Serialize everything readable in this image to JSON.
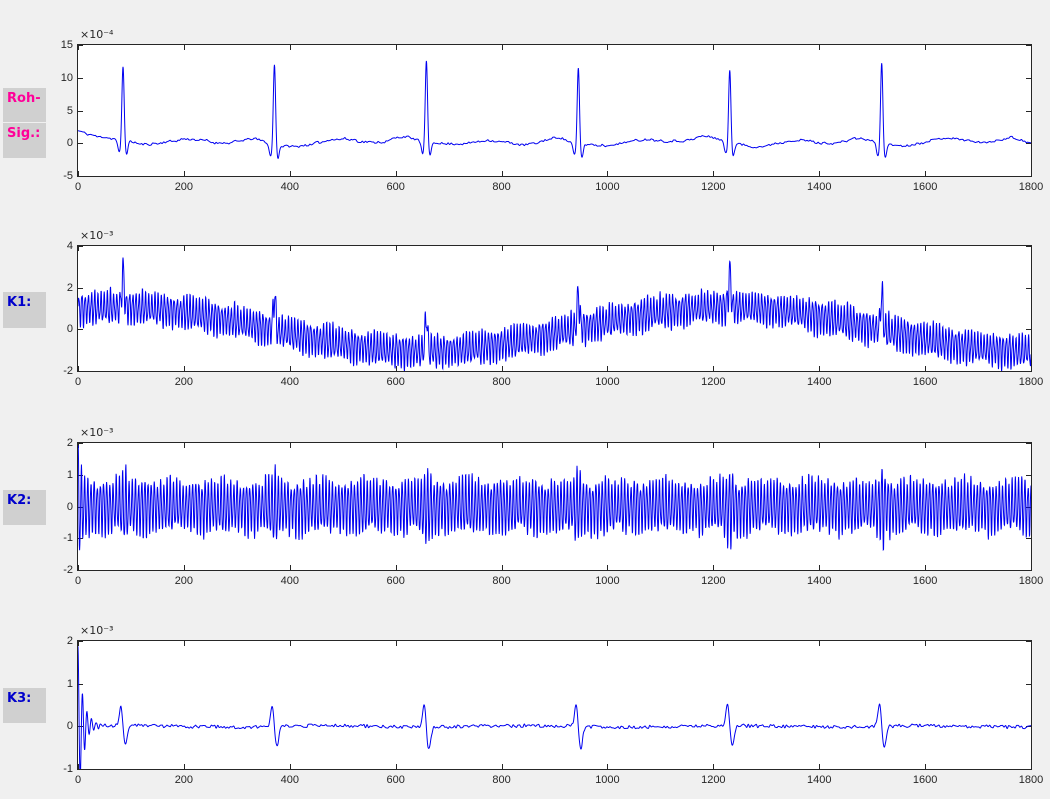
{
  "figure": {
    "bg_color": "#f0f0f0",
    "plot_bg_color": "#ffffff",
    "axis_color": "#262626",
    "trace_color": "#0000f0",
    "label_box_color": "#d0d0d0",
    "row_labels": [
      {
        "text": "Roh-",
        "color": "#ff0099"
      },
      {
        "text": "Sig.:",
        "color": "#ff0099"
      },
      {
        "text": "K1:",
        "color": "#0000cc"
      },
      {
        "text": "K2:",
        "color": "#0000cc"
      },
      {
        "text": "K3:",
        "color": "#0000cc"
      }
    ]
  },
  "chart_data": [
    {
      "type": "line",
      "row_label": "Roh-Sig.:",
      "title": "",
      "xlabel": "",
      "ylabel": "",
      "exponent_label": "×10⁻⁴",
      "xlim": [
        0,
        1800
      ],
      "ylim": [
        -5,
        15
      ],
      "x_ticks": [
        0,
        200,
        400,
        600,
        800,
        1000,
        1200,
        1400,
        1600,
        1800
      ],
      "y_ticks": [
        15,
        10,
        5,
        0,
        -5
      ],
      "grid": false,
      "legend": null,
      "signal": {
        "kind": "ecg",
        "description": "raw ECG signal with six QRS complexes and T-waves",
        "beat_positions": [
          85,
          371,
          658,
          945,
          1231,
          1518
        ],
        "r_peak_heights": [
          11.5,
          12.3,
          12.6,
          11.6,
          11.2,
          12.4
        ],
        "q_depth": -1.9,
        "s_depth": -2.0,
        "t_wave_height": 0.9,
        "start_value": 1.7,
        "noise_amplitude": 0.15
      }
    },
    {
      "type": "line",
      "row_label": "K1:",
      "title": "",
      "xlabel": "",
      "ylabel": "",
      "exponent_label": "×10⁻³",
      "xlim": [
        0,
        1800
      ],
      "ylim": [
        -2,
        4
      ],
      "x_ticks": [
        0,
        200,
        400,
        600,
        800,
        1000,
        1200,
        1400,
        1600,
        1800
      ],
      "y_ticks": [
        4,
        2,
        0,
        -2
      ],
      "grid": false,
      "legend": null,
      "signal": {
        "kind": "modulated_oscillation",
        "description": "high-frequency oscillation (±1) riding on slow sinusoidal drift, spikes at heartbeats",
        "osc_amplitude": 0.95,
        "osc_period": 6.0,
        "drift_amplitude": 1.05,
        "drift_period": 1150,
        "drift_peak_x": 1225,
        "beat_positions": [
          85,
          371,
          658,
          945,
          1231,
          1518
        ],
        "spike_height": 1.7
      }
    },
    {
      "type": "line",
      "row_label": "K2:",
      "title": "",
      "xlabel": "",
      "ylabel": "",
      "exponent_label": "×10⁻³",
      "xlim": [
        0,
        1800
      ],
      "ylim": [
        -2,
        2
      ],
      "x_ticks": [
        0,
        200,
        400,
        600,
        800,
        1000,
        1200,
        1400,
        1600,
        1800
      ],
      "y_ticks": [
        2,
        1,
        0,
        -1,
        -2
      ],
      "grid": false,
      "legend": null,
      "signal": {
        "kind": "oscillation",
        "description": "constant-amplitude (±0.9) high-frequency oscillation, amplitude bursts at heartbeats, initial transient to ~2",
        "osc_amplitude": 0.9,
        "osc_period": 6.0,
        "initial_transient": 1.1,
        "beat_positions": [
          85,
          371,
          658,
          945,
          1231,
          1518
        ],
        "spike_boost": 0.55
      }
    },
    {
      "type": "line",
      "row_label": "K3:",
      "title": "",
      "xlabel": "",
      "ylabel": "",
      "exponent_label": "×10⁻³",
      "xlim": [
        0,
        1800
      ],
      "ylim": [
        -1,
        2
      ],
      "x_ticks": [
        0,
        200,
        400,
        600,
        800,
        1000,
        1200,
        1400,
        1600,
        1800
      ],
      "y_ticks": [
        2,
        1,
        0,
        -1
      ],
      "grid": false,
      "legend": null,
      "signal": {
        "kind": "spike_train",
        "description": "near-flat trace, biphasic spikes (~±0.5) at heartbeats, decaying ringing transient at x=0 starting at ~1.85",
        "initial_amplitude": 1.85,
        "noise_amplitude": 0.04,
        "beat_positions": [
          85,
          371,
          658,
          945,
          1231,
          1518
        ],
        "spike_heights": [
          0.45,
          0.5,
          0.57,
          0.55,
          0.5,
          0.55
        ]
      }
    }
  ]
}
